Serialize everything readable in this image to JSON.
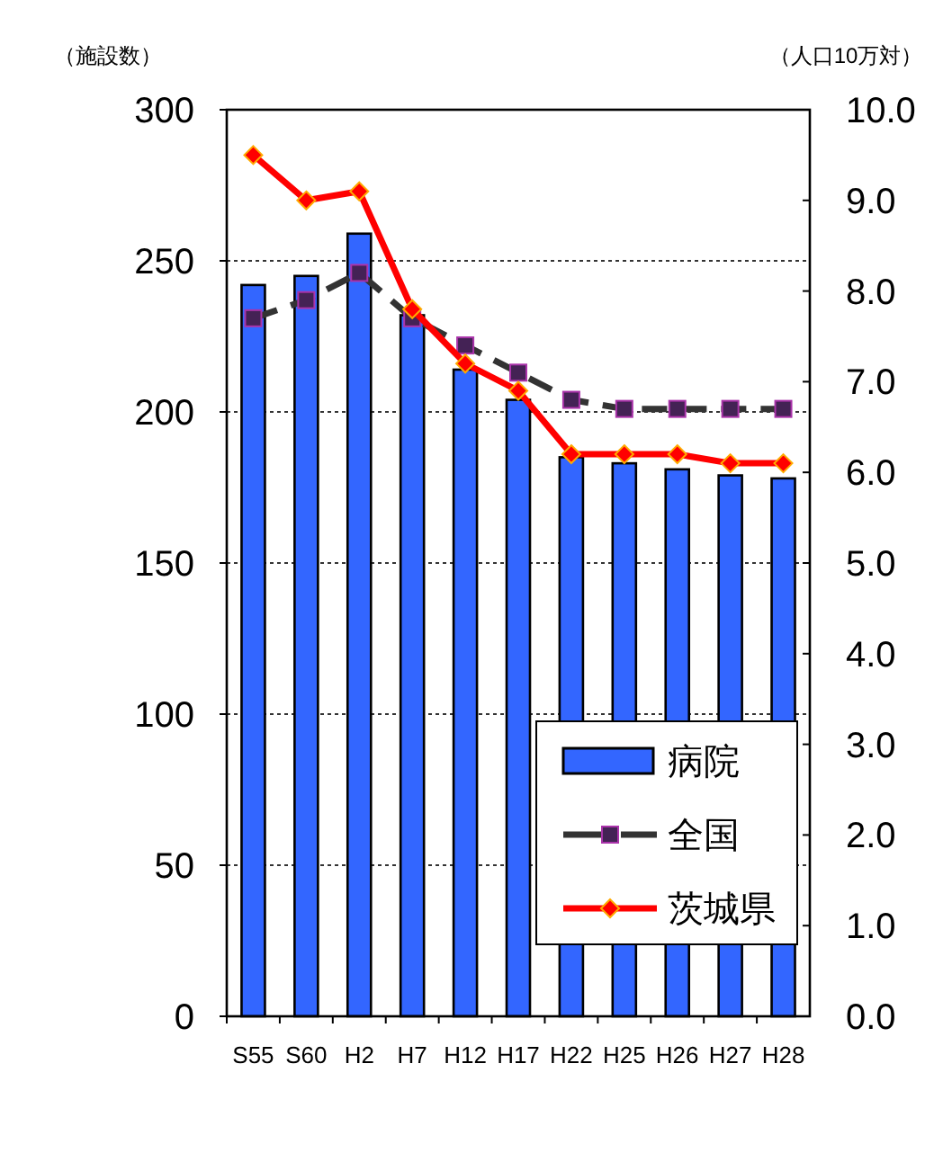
{
  "chart_data": {
    "type": "bar",
    "ylabel": "（施設数）",
    "y2label": "（人口10万対）",
    "categories": [
      "S55",
      "S60",
      "H2",
      "H7",
      "H12",
      "H17",
      "H22",
      "H25",
      "H26",
      "H27",
      "H28"
    ],
    "series": [
      {
        "name": "病院",
        "color": "#3366ff",
        "values": [
          242,
          245,
          259,
          232,
          214,
          204,
          185,
          183,
          181,
          179,
          178
        ]
      },
      {
        "name": "全国",
        "type": "line",
        "axis": "y2",
        "color": "#333333",
        "marker": "square",
        "line_style": "dashed",
        "values": [
          7.7,
          7.9,
          8.2,
          7.7,
          7.4,
          7.1,
          6.8,
          6.7,
          6.7,
          6.7,
          6.7
        ]
      },
      {
        "name": "茨城県",
        "type": "line",
        "axis": "y2",
        "color": "#ff0000",
        "marker": "diamond",
        "line_style": "solid",
        "values": [
          9.5,
          9.0,
          9.1,
          7.8,
          7.2,
          6.9,
          6.2,
          6.2,
          6.2,
          6.1,
          6.1
        ]
      }
    ],
    "ylim": [
      0,
      300
    ],
    "yticks": [
      0,
      50,
      100,
      150,
      200,
      250,
      300
    ],
    "y2lim": [
      0,
      10
    ],
    "y2ticks": [
      {
        "value": 0,
        "label": "0.0"
      },
      {
        "value": 1,
        "label": "1.0"
      },
      {
        "value": 2,
        "label": "2.0"
      },
      {
        "value": 3,
        "label": "3.0"
      },
      {
        "value": 4,
        "label": "4.0"
      },
      {
        "value": 5,
        "label": "5.0"
      },
      {
        "value": 6,
        "label": "6.0"
      },
      {
        "value": 7,
        "label": "7.0"
      },
      {
        "value": 8,
        "label": "8.0"
      },
      {
        "value": 9,
        "label": "9.0"
      },
      {
        "value": 10,
        "label": "10.0"
      }
    ],
    "grid": "y",
    "legend": "bottom right"
  }
}
